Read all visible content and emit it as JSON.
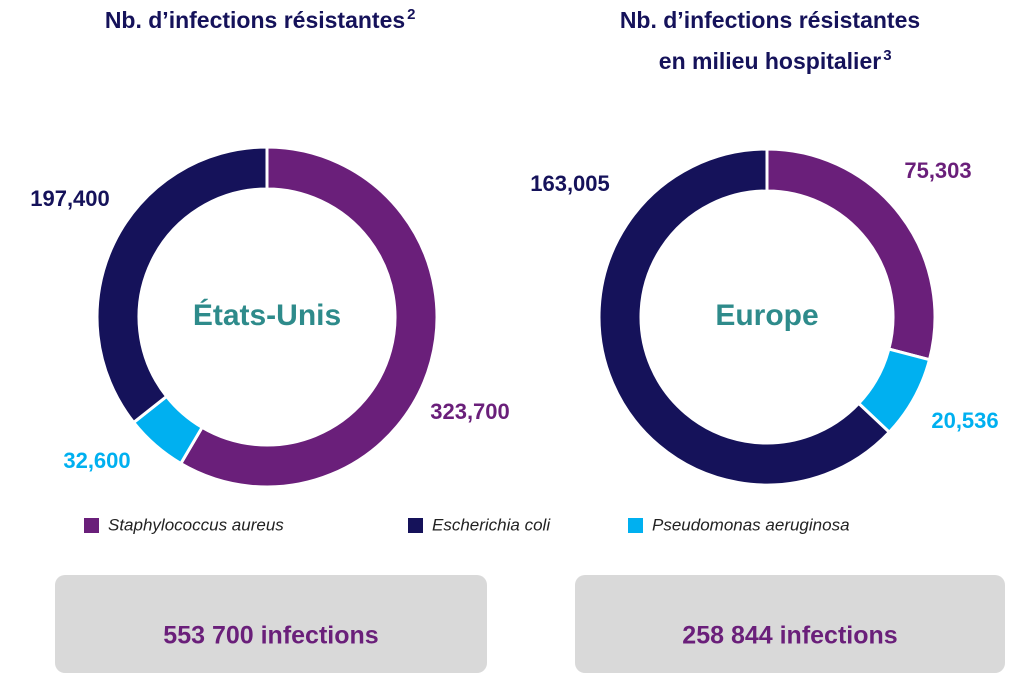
{
  "legend": [
    {
      "name": "Staphylococcus aureus",
      "color": "#6a1f7a"
    },
    {
      "name": "Escherichia coli",
      "color": "#15125a"
    },
    {
      "name": "Pseudomonas aeruginosa",
      "color": "#00b0f0"
    }
  ],
  "chart_data": [
    {
      "type": "pie",
      "donut": true,
      "title": [
        "Nb. d’infections résistantes"
      ],
      "title_note": "2",
      "center_label": "États-Unis",
      "values": [
        323700,
        197400,
        32600
      ],
      "value_labels": [
        "323,700",
        "197,400",
        "32,600"
      ],
      "total_label": "553 700 infections"
    },
    {
      "type": "pie",
      "donut": true,
      "title": [
        "Nb. d’infections résistantes",
        "en milieu hospitalier"
      ],
      "title_note": "3",
      "center_label": "Europe",
      "values": [
        75303,
        163005,
        20536
      ],
      "value_labels": [
        "75,303",
        "163,005",
        "20,536"
      ],
      "total_label": "258 844  infections"
    }
  ]
}
